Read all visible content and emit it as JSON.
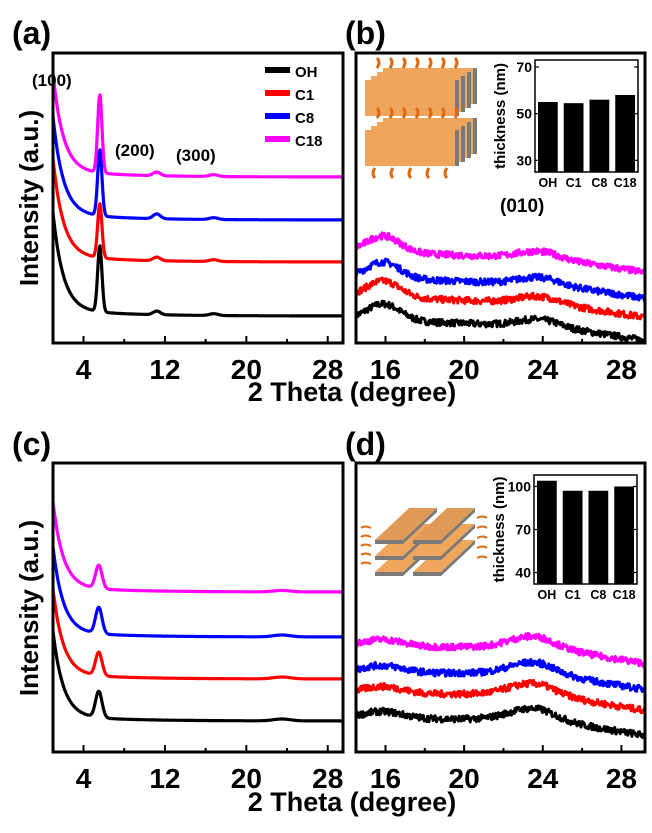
{
  "figure": {
    "shared_xlabel": "2 Theta (degree)",
    "shared_ylabel": "Intensity (a.u.)"
  },
  "colors": {
    "OH": "#000000",
    "C1": "#ff0000",
    "C8": "#0000ff",
    "C18": "#ff00ff"
  },
  "chart_data": [
    {
      "panel": "(a)",
      "type": "line",
      "xlim": [
        1,
        29.5
      ],
      "xticks": [
        4,
        12,
        20,
        28
      ],
      "minor_xticks": [
        8,
        16,
        24
      ],
      "legend": [
        "OH",
        "C1",
        "C8",
        "C18"
      ],
      "legend_placement": "top-right",
      "annotations": [
        "(100)",
        "(200)",
        "(300)"
      ],
      "series": [
        {
          "name": "OH",
          "offset": 0,
          "peaks": [
            {
              "x": 5.6,
              "h": 0.55,
              "w": 0.3
            },
            {
              "x": 11.2,
              "h": 0.03,
              "w": 0.5
            },
            {
              "x": 16.8,
              "h": 0.015,
              "w": 0.6
            }
          ],
          "baseline": 0.0,
          "lowangle": 0.8
        },
        {
          "name": "C1",
          "offset": 1,
          "peaks": [
            {
              "x": 5.6,
              "h": 0.45,
              "w": 0.3
            },
            {
              "x": 11.2,
              "h": 0.03,
              "w": 0.5
            },
            {
              "x": 16.8,
              "h": 0.015,
              "w": 0.6
            }
          ],
          "baseline": 0.0,
          "lowangle": 0.8
        },
        {
          "name": "C8",
          "offset": 2,
          "peaks": [
            {
              "x": 5.6,
              "h": 0.55,
              "w": 0.3
            },
            {
              "x": 11.2,
              "h": 0.04,
              "w": 0.5
            },
            {
              "x": 16.8,
              "h": 0.015,
              "w": 0.6
            }
          ],
          "baseline": 0.0,
          "lowangle": 0.8
        },
        {
          "name": "C18",
          "offset": 3,
          "peaks": [
            {
              "x": 5.6,
              "h": 0.65,
              "w": 0.3
            },
            {
              "x": 11.2,
              "h": 0.03,
              "w": 0.5
            },
            {
              "x": 16.8,
              "h": 0.015,
              "w": 0.6
            }
          ],
          "baseline": 0.0,
          "lowangle": 0.8
        }
      ],
      "inset": null
    },
    {
      "panel": "(b)",
      "type": "line",
      "xlim": [
        14.5,
        29.2
      ],
      "xticks": [
        16,
        20,
        24,
        28
      ],
      "minor_xticks": [
        18,
        22,
        26
      ],
      "annotations": [
        "(010)"
      ],
      "series": [
        {
          "name": "OH",
          "offset": 0,
          "shape": "b"
        },
        {
          "name": "C1",
          "offset": 1,
          "shape": "b"
        },
        {
          "name": "C8",
          "offset": 2,
          "shape": "b"
        },
        {
          "name": "C18",
          "offset": 3,
          "shape": "b"
        }
      ],
      "inset": {
        "type": "bar",
        "ylabel": "thickness (nm)",
        "categories": [
          "OH",
          "C1",
          "C8",
          "C18"
        ],
        "values": [
          55,
          54.5,
          56,
          58
        ],
        "ylim": [
          25,
          73
        ],
        "yticks": [
          30,
          50,
          70
        ]
      }
    },
    {
      "panel": "(c)",
      "type": "line",
      "xlim": [
        1,
        29.5
      ],
      "xticks": [
        4,
        12,
        20,
        28
      ],
      "minor_xticks": [
        8,
        16,
        24
      ],
      "series": [
        {
          "name": "OH",
          "offset": 0,
          "peaks": [
            {
              "x": 5.5,
              "h": 0.28,
              "w": 0.45
            },
            {
              "x": 23.5,
              "h": 0.02,
              "w": 1.2
            }
          ],
          "lowangle": 0.9
        },
        {
          "name": "C1",
          "offset": 1,
          "peaks": [
            {
              "x": 5.5,
              "h": 0.25,
              "w": 0.45
            },
            {
              "x": 23.5,
              "h": 0.02,
              "w": 1.2
            }
          ],
          "lowangle": 0.9
        },
        {
          "name": "C8",
          "offset": 2,
          "peaks": [
            {
              "x": 5.5,
              "h": 0.28,
              "w": 0.45
            },
            {
              "x": 23.5,
              "h": 0.02,
              "w": 1.2
            }
          ],
          "lowangle": 0.9
        },
        {
          "name": "C18",
          "offset": 3,
          "peaks": [
            {
              "x": 5.5,
              "h": 0.25,
              "w": 0.45
            },
            {
              "x": 23.5,
              "h": 0.015,
              "w": 1.2
            }
          ],
          "lowangle": 0.9
        }
      ],
      "inset": null
    },
    {
      "panel": "(d)",
      "type": "line",
      "xlim": [
        14.5,
        29.2
      ],
      "xticks": [
        16,
        20,
        24,
        28
      ],
      "minor_xticks": [
        18,
        22,
        26
      ],
      "series": [
        {
          "name": "OH",
          "offset": 0,
          "shape": "d"
        },
        {
          "name": "C1",
          "offset": 1,
          "shape": "d"
        },
        {
          "name": "C8",
          "offset": 2,
          "shape": "d"
        },
        {
          "name": "C18",
          "offset": 3,
          "shape": "d"
        }
      ],
      "inset": {
        "type": "bar",
        "ylabel": "thickness (nm)",
        "categories": [
          "OH",
          "C1",
          "C8",
          "C18"
        ],
        "values": [
          104,
          97,
          97,
          100
        ],
        "ylim": [
          32,
          108
        ],
        "yticks": [
          40,
          70,
          100
        ]
      }
    }
  ]
}
